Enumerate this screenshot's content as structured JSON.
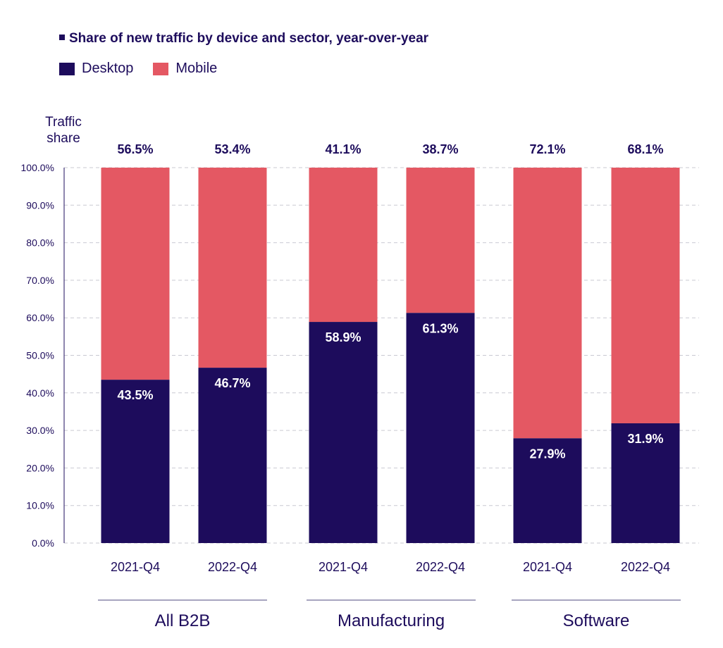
{
  "chart_data": {
    "type": "bar",
    "stacked": true,
    "title": "Share of new traffic by device and sector, year-over-year",
    "ylabel": "Traffic share",
    "ylim": [
      0,
      100
    ],
    "yticks": [
      "0.0%",
      "10.0%",
      "20.0%",
      "30.0%",
      "40.0%",
      "50.0%",
      "60.0%",
      "70.0%",
      "80.0%",
      "90.0%",
      "100.0%"
    ],
    "grid": "horizontal dashed",
    "legend": "top-left",
    "groups": [
      {
        "name": "All B2B",
        "categories": [
          "2021-Q4",
          "2022-Q4"
        ]
      },
      {
        "name": "Manufacturing",
        "categories": [
          "2021-Q4",
          "2022-Q4"
        ]
      },
      {
        "name": "Software",
        "categories": [
          "2021-Q4",
          "2022-Q4"
        ]
      }
    ],
    "series": [
      {
        "name": "Desktop",
        "color": "#1d0c5c",
        "values": [
          43.5,
          46.7,
          58.9,
          61.3,
          27.9,
          31.9
        ],
        "labels": [
          "43.5%",
          "46.7%",
          "58.9%",
          "61.3%",
          "27.9%",
          "31.9%"
        ]
      },
      {
        "name": "Mobile",
        "color": "#e45863",
        "values": [
          56.5,
          53.4,
          41.1,
          38.7,
          72.1,
          68.1
        ],
        "labels": [
          "56.5%",
          "53.4%",
          "41.1%",
          "38.7%",
          "72.1%",
          "68.1%"
        ]
      }
    ]
  }
}
